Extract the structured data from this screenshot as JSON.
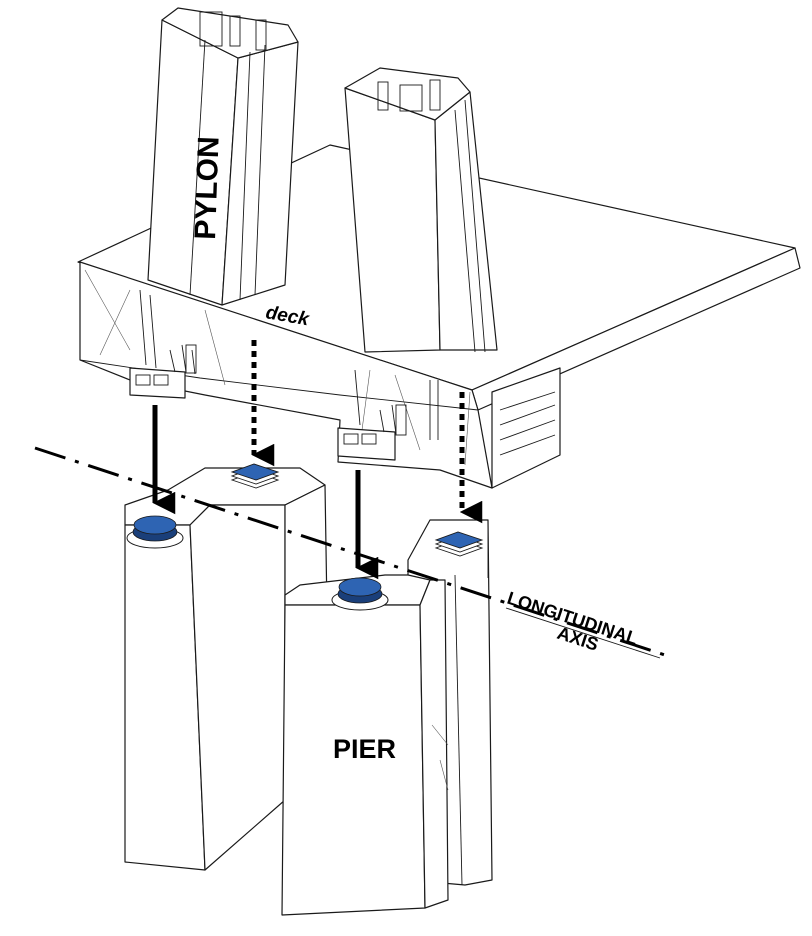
{
  "labels": {
    "pylon": "PYLON",
    "deck": "deck",
    "pier": "PIER",
    "axis_line1": "LONGITUDINAL",
    "axis_line2": "AXIS"
  },
  "colors": {
    "bearing_blue": "#2e64b3",
    "bearing_dark": "#1a3f7a",
    "line": "#1a1a1a",
    "arrow": "#000000"
  },
  "legend": {
    "solid_arrow": "bearing-load-path-visible",
    "dotted_arrow": "bearing-load-path-hidden"
  }
}
